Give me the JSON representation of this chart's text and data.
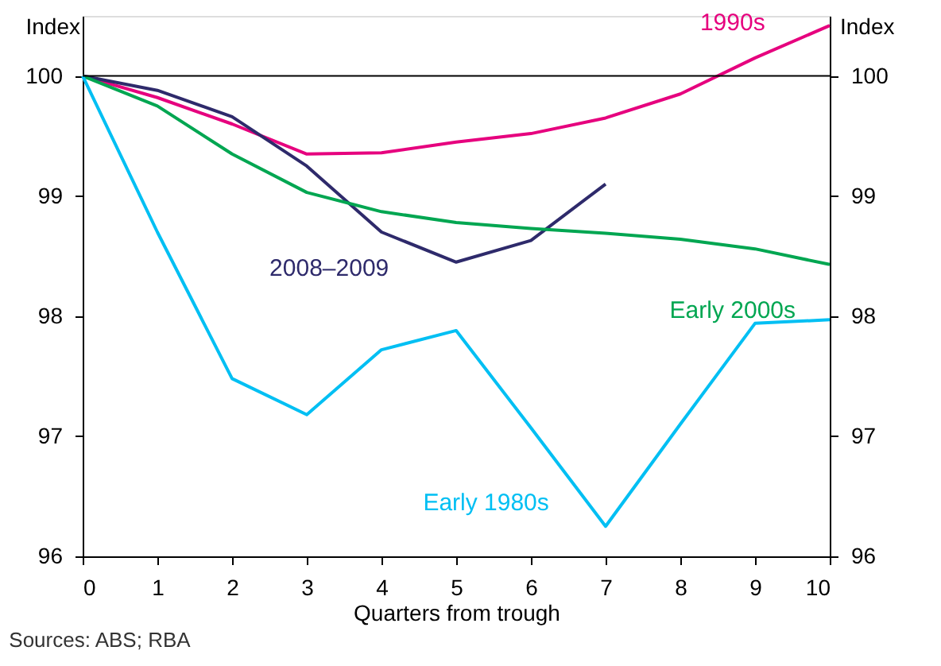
{
  "chart_data": {
    "type": "line",
    "x": [
      0,
      1,
      2,
      3,
      4,
      5,
      6,
      7,
      8,
      9,
      10
    ],
    "series": [
      {
        "name": "1990s",
        "color": "#e6007e",
        "values": [
          100,
          99.82,
          99.6,
          99.35,
          99.36,
          99.45,
          99.52,
          99.65,
          99.85,
          100.15,
          100.42
        ]
      },
      {
        "name": "2008–2009",
        "color": "#2e2a6b",
        "values": [
          100,
          99.88,
          99.66,
          99.25,
          98.7,
          98.45,
          98.63,
          99.1,
          null,
          null,
          null
        ]
      },
      {
        "name": "Early 2000s",
        "color": "#00a651",
        "values": [
          100,
          99.75,
          99.35,
          99.03,
          98.87,
          98.78,
          98.73,
          98.69,
          98.64,
          98.56,
          98.43
        ]
      },
      {
        "name": "Early 1980s",
        "color": "#00bff3",
        "values": [
          100,
          98.7,
          97.48,
          97.18,
          97.72,
          97.88,
          97.07,
          96.25,
          97.1,
          97.94,
          97.97
        ]
      }
    ],
    "xlabel": "Quarters from trough",
    "ylabel": "Index",
    "y2label": "Index",
    "xlim": [
      0,
      10
    ],
    "xticks": [
      0,
      1,
      2,
      3,
      4,
      5,
      6,
      7,
      8,
      9,
      10
    ],
    "ylim": [
      96,
      100.5
    ],
    "yticks": [
      96,
      97,
      98,
      99,
      100
    ],
    "y2lim": [
      96,
      100.5
    ],
    "y2ticks": [
      96,
      97,
      98,
      99,
      100
    ],
    "ref_lines": [
      {
        "axis": "y",
        "value": 100,
        "label": null,
        "color": "#000000"
      }
    ],
    "annotations": [
      "Sources: ABS; RBA"
    ],
    "marker": "none",
    "line_style": "solid"
  }
}
